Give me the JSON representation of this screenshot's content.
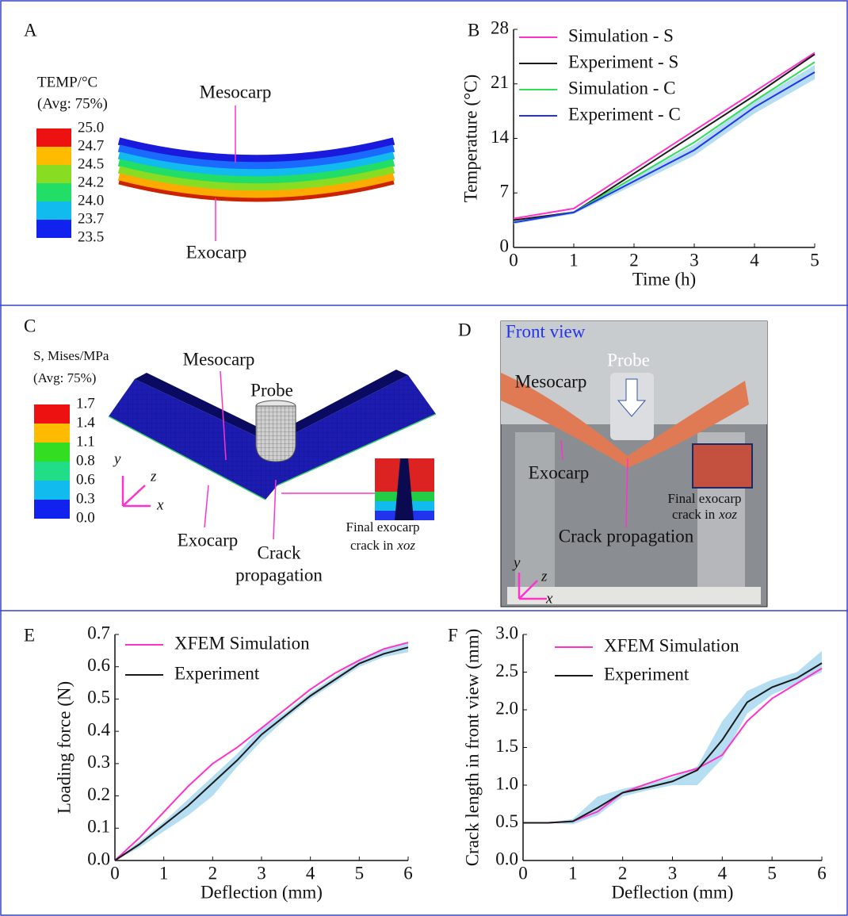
{
  "panels": {
    "a": {
      "label": "A",
      "legend_title": "TEMP/°C",
      "legend_subtitle": "(Avg: 75%)",
      "legend_levels": [
        "25.0",
        "24.7",
        "24.5",
        "24.2",
        "24.0",
        "23.7",
        "23.5"
      ],
      "mesocarp": "Mesocarp",
      "exocarp": "Exocarp"
    },
    "c": {
      "label": "C",
      "legend_title": "S, Mises/MPa",
      "legend_subtitle": "(Avg: 75%)",
      "legend_levels": [
        "1.7",
        "1.4",
        "1.1",
        "0.8",
        "0.6",
        "0.3",
        "0.0"
      ],
      "mesocarp": "Mesocarp",
      "probe": "Probe",
      "exocarp": "Exocarp",
      "crack": [
        "Crack",
        "propagation"
      ],
      "inset": [
        "Final exocarp",
        "crack in",
        "xoz"
      ],
      "axes": [
        "y",
        "z",
        "x"
      ]
    },
    "d": {
      "label": "D",
      "view": "Front view",
      "probe": "Probe",
      "mesocarp": "Mesocarp",
      "exocarp": "Exocarp",
      "inset": [
        "Final exocarp",
        "crack in",
        "xoz"
      ],
      "crack": "Crack propagation",
      "axes": [
        "y",
        "z",
        "x"
      ]
    }
  },
  "chart_data": [
    {
      "type": "line",
      "panel_label": "B",
      "x_label": "Time (h)",
      "y_label": "Temperature (°C)",
      "x": [
        0,
        1,
        2,
        3,
        4,
        5
      ],
      "xlim": [
        0,
        5
      ],
      "ylim": [
        0,
        28
      ],
      "xticks": [
        0,
        1,
        2,
        3,
        4,
        5
      ],
      "yticks": [
        0,
        7,
        14,
        21,
        28
      ],
      "legend": "upper left",
      "series": [
        {
          "name": "Simulation - S",
          "color": "#ff33cc",
          "values": [
            3.7,
            5,
            10,
            15,
            20,
            25
          ]
        },
        {
          "name": "Experiment - S",
          "color": "#1a1a1a",
          "values": [
            3.5,
            4.5,
            9.5,
            14.5,
            19.5,
            24.8
          ]
        },
        {
          "name": "Simulation - C",
          "color": "#33dd55",
          "values": [
            3.2,
            4.5,
            9,
            13.5,
            18.8,
            23.8
          ]
        },
        {
          "name": "Experiment - C",
          "color": "#2233ee",
          "values": [
            3.2,
            4.5,
            8.5,
            12.5,
            18,
            22.5
          ],
          "lower": [
            3.0,
            4.3,
            8.0,
            11.8,
            17.2,
            21.6
          ],
          "upper": [
            3.4,
            4.7,
            9.0,
            13.2,
            18.8,
            23.4
          ]
        }
      ]
    },
    {
      "type": "line",
      "panel_label": "E",
      "x_label": "Deflection (mm)",
      "y_label": "Loading force (N)",
      "x": [
        0,
        0.5,
        1,
        1.5,
        2,
        2.5,
        3,
        3.5,
        4,
        4.5,
        5,
        5.5,
        6
      ],
      "xlim": [
        0,
        6
      ],
      "ylim": [
        0,
        0.7
      ],
      "xticks": [
        0,
        1,
        2,
        3,
        4,
        5,
        6
      ],
      "yticks": [
        {
          "value": 0,
          "label": "0.0"
        },
        0.1,
        0.2,
        0.3,
        0.4,
        0.5,
        0.6,
        0.7
      ],
      "legend": "upper left",
      "series": [
        {
          "name": "XFEM Simulation",
          "color": "#ff33cc",
          "values": [
            0,
            0.07,
            0.15,
            0.23,
            0.3,
            0.35,
            0.41,
            0.47,
            0.53,
            0.58,
            0.62,
            0.655,
            0.675
          ]
        },
        {
          "name": "Experiment",
          "color": "#1a1a1a",
          "values": [
            0,
            0.05,
            0.11,
            0.17,
            0.24,
            0.31,
            0.39,
            0.45,
            0.51,
            0.56,
            0.61,
            0.64,
            0.66
          ],
          "lower": [
            0,
            0.04,
            0.09,
            0.14,
            0.2,
            0.29,
            0.37,
            0.44,
            0.5,
            0.55,
            0.6,
            0.63,
            0.645
          ],
          "upper": [
            0,
            0.06,
            0.12,
            0.19,
            0.26,
            0.33,
            0.41,
            0.46,
            0.52,
            0.57,
            0.62,
            0.655,
            0.675
          ]
        }
      ]
    },
    {
      "type": "line",
      "panel_label": "F",
      "x_label": "Deflection (mm)",
      "y_label": "Crack length in front view (mm)",
      "x": [
        0,
        0.5,
        1,
        1.5,
        2,
        2.5,
        3,
        3.5,
        4,
        4.5,
        5,
        5.5,
        6
      ],
      "xlim": [
        0,
        6
      ],
      "ylim": [
        0,
        3
      ],
      "xticks": [
        0,
        1,
        2,
        3,
        4,
        5,
        6
      ],
      "yticks": [
        {
          "value": 0,
          "label": "0.0"
        },
        0.5,
        {
          "value": 1,
          "label": "1.0"
        },
        1.5,
        {
          "value": 2,
          "label": "2.0"
        },
        2.5,
        {
          "value": 3,
          "label": "3.0"
        }
      ],
      "legend": "upper left",
      "series": [
        {
          "name": "XFEM Simulation",
          "color": "#ff33cc",
          "values": [
            0.5,
            0.5,
            0.52,
            0.65,
            0.9,
            1.02,
            1.13,
            1.22,
            1.4,
            1.85,
            2.15,
            2.35,
            2.55
          ]
        },
        {
          "name": "Experiment",
          "color": "#1a1a1a",
          "values": [
            0.5,
            0.5,
            0.52,
            0.7,
            0.9,
            0.97,
            1.05,
            1.2,
            1.6,
            2.1,
            2.3,
            2.42,
            2.62
          ],
          "lower": [
            0.5,
            0.5,
            0.48,
            0.6,
            0.85,
            0.93,
            1.0,
            1.0,
            1.35,
            1.95,
            2.2,
            2.35,
            2.5
          ],
          "upper": [
            0.5,
            0.5,
            0.55,
            0.85,
            0.95,
            1.02,
            1.1,
            1.25,
            1.85,
            2.25,
            2.4,
            2.5,
            2.78
          ]
        }
      ]
    }
  ]
}
